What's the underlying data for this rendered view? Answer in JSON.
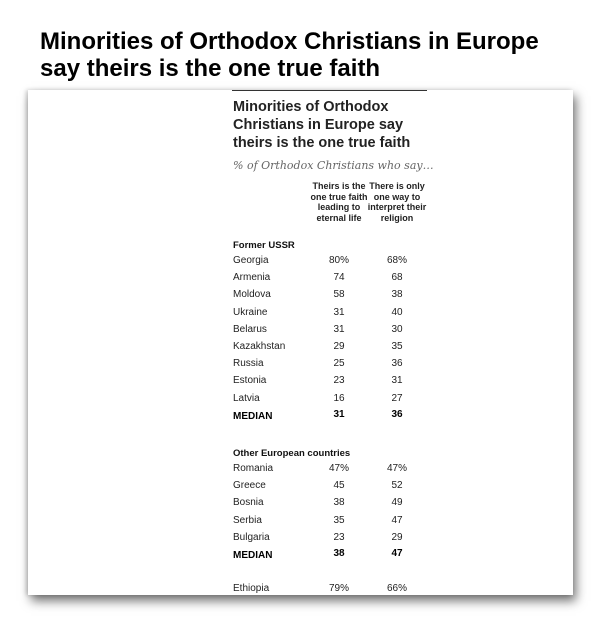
{
  "page_title": "Minorities of Orthodox Christians in Europe say theirs is the one true faith",
  "chart_data": {
    "type": "table",
    "title": "Minorities of Orthodox Christians in Europe say theirs is the one true faith",
    "subtitle": "% of Orthodox Christians who say…",
    "columns": [
      "Theirs is the one true faith leading to eternal life",
      "There is only one way to interpret their religion"
    ],
    "sections": [
      {
        "label": "Former USSR",
        "rows": [
          {
            "country": "Georgia",
            "values": [
              "80%",
              "68%"
            ]
          },
          {
            "country": "Armenia",
            "values": [
              "74",
              "68"
            ]
          },
          {
            "country": "Moldova",
            "values": [
              "58",
              "38"
            ]
          },
          {
            "country": "Ukraine",
            "values": [
              "31",
              "40"
            ]
          },
          {
            "country": "Belarus",
            "values": [
              "31",
              "30"
            ]
          },
          {
            "country": "Kazakhstan",
            "values": [
              "29",
              "35"
            ]
          },
          {
            "country": "Russia",
            "values": [
              "25",
              "36"
            ]
          },
          {
            "country": "Estonia",
            "values": [
              "23",
              "31"
            ]
          },
          {
            "country": "Latvia",
            "values": [
              "16",
              "27"
            ]
          }
        ],
        "median": {
          "label": "MEDIAN",
          "values": [
            "31",
            "36"
          ]
        }
      },
      {
        "label": "Other European countries",
        "rows": [
          {
            "country": "Romania",
            "values": [
              "47%",
              "47%"
            ]
          },
          {
            "country": "Greece",
            "values": [
              "45",
              "52"
            ]
          },
          {
            "country": "Bosnia",
            "values": [
              "38",
              "49"
            ]
          },
          {
            "country": "Serbia",
            "values": [
              "35",
              "47"
            ]
          },
          {
            "country": "Bulgaria",
            "values": [
              "23",
              "29"
            ]
          }
        ],
        "median": {
          "label": "MEDIAN",
          "values": [
            "38",
            "47"
          ]
        }
      },
      {
        "label": "",
        "rows": [
          {
            "country": "Ethiopia",
            "values": [
              "79%",
              "66%"
            ]
          }
        ]
      }
    ]
  }
}
